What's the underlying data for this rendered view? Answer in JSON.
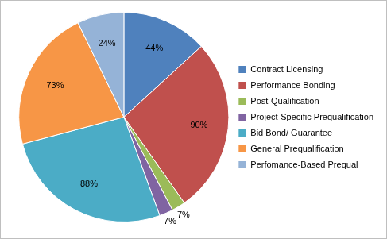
{
  "chart_data": {
    "type": "pie",
    "categories": [
      "Contract Licensing",
      "Performance Bonding",
      "Post-Qualification",
      "Project-Specific Prequalification",
      "Bid Bond/ Guarantee",
      "General Prequalification",
      "Perfomance-Based Prequal"
    ],
    "values": [
      44,
      90,
      7,
      7,
      88,
      73,
      24
    ],
    "value_labels": [
      "44%",
      "90%",
      "7%",
      "7%",
      "88%",
      "73%",
      "24%"
    ],
    "colors": [
      "#4f81bd",
      "#c0504d",
      "#9bbb59",
      "#8064a2",
      "#4bacc6",
      "#f79646",
      "#95b3d7"
    ],
    "data_labels": true,
    "legend": "right"
  }
}
